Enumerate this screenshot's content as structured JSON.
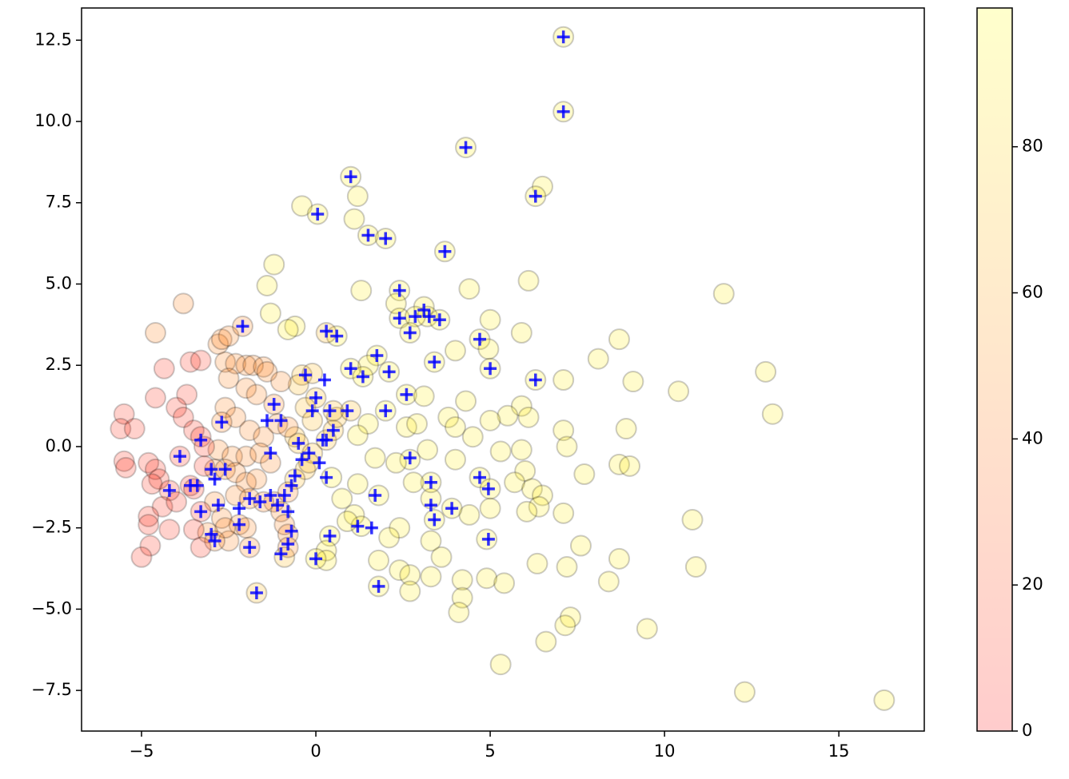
{
  "chart_data": {
    "type": "scatter",
    "xlim": [
      -6.72,
      17.45
    ],
    "ylim": [
      -8.75,
      13.49
    ],
    "xticks": [
      {
        "value": -5,
        "label": "−5"
      },
      0,
      5,
      10,
      15
    ],
    "yticks": [
      {
        "value": -7.5,
        "label": "−7.5"
      },
      {
        "value": -5,
        "label": "−5.0"
      },
      {
        "value": -2.5,
        "label": "−2.5"
      },
      {
        "value": 0,
        "label": "0.0"
      },
      2.5,
      {
        "value": 5,
        "label": "5.0"
      },
      7.5,
      {
        "value": 10,
        "label": "10.0"
      },
      12.5
    ],
    "colorbar": {
      "colormap": "autumn",
      "clim": [
        0,
        99
      ],
      "ticks": [
        0,
        20,
        40,
        60,
        80
      ],
      "alpha": 0.2
    },
    "series": [
      {
        "c": 92,
        "alpha": 0.2,
        "edgecolor": "#000000",
        "x": [
          7.1,
          7.1,
          4.3,
          1.0,
          1.2,
          6.5,
          6.3,
          -0.4,
          0.05,
          1.1,
          1.5,
          2.0,
          3.7,
          -1.2,
          -1.4,
          1.3,
          2.4,
          4.4,
          6.1,
          11.7,
          -1.3,
          2.3,
          3.1,
          3.2,
          2.4,
          2.85,
          3.55,
          5.0,
          5.9,
          0.6,
          -0.6,
          -0.8,
          8.7,
          8.1,
          12.9,
          9.1,
          10.4,
          13.1,
          7.1,
          6.3,
          4.7,
          4.95,
          5.0,
          4.0,
          3.4,
          2.7,
          1.75,
          1.5,
          2.1,
          1.0,
          1.35,
          2.6,
          3.1,
          4.3,
          5.9,
          6.1,
          5.5,
          5.0,
          4.5,
          3.8,
          4.0,
          2.0,
          1.5,
          2.6,
          2.9,
          1.2,
          8.9,
          7.1,
          7.2,
          5.9,
          5.3,
          4.0,
          3.2,
          2.7,
          1.7,
          2.3,
          6.0,
          7.7,
          8.7,
          9.0,
          4.7,
          5.0,
          5.7,
          6.2,
          6.5,
          6.4,
          6.05,
          7.1,
          5.0,
          4.4,
          3.9,
          3.3,
          3.3,
          2.8,
          3.4,
          3.3,
          2.4,
          2.1,
          1.8,
          2.4,
          2.7,
          2.7,
          1.8,
          3.3,
          3.6,
          4.2,
          4.9,
          4.2,
          4.1,
          5.4,
          6.35,
          7.2,
          7.6,
          8.4,
          8.7,
          10.8,
          10.9,
          7.3,
          7.15,
          6.6,
          9.5,
          5.3,
          12.3,
          16.3,
          4.9,
          1.2,
          1.8,
          1.1,
          1.3,
          0.9,
          0.4,
          0.3,
          0.3,
          0.0,
          0.75,
          0.45
        ],
        "y": [
          12.6,
          10.3,
          9.2,
          8.3,
          7.7,
          8.0,
          7.7,
          7.4,
          7.15,
          7.0,
          6.5,
          6.4,
          6.0,
          5.6,
          4.95,
          4.8,
          4.8,
          4.85,
          5.1,
          4.7,
          4.1,
          4.4,
          4.3,
          4.0,
          3.95,
          4.0,
          3.9,
          3.9,
          3.5,
          3.4,
          3.7,
          3.6,
          3.3,
          2.7,
          2.3,
          2.0,
          1.7,
          1.0,
          2.05,
          2.05,
          3.3,
          3.0,
          2.4,
          2.95,
          2.6,
          3.5,
          2.8,
          2.5,
          2.3,
          2.4,
          2.15,
          1.6,
          1.55,
          1.4,
          1.25,
          0.9,
          0.95,
          0.8,
          0.3,
          0.9,
          0.6,
          1.1,
          0.7,
          0.6,
          0.7,
          0.35,
          0.55,
          0.5,
          0.0,
          -0.1,
          -0.15,
          -0.4,
          -0.1,
          -0.4,
          -0.35,
          -0.5,
          -0.75,
          -0.85,
          -0.55,
          -0.6,
          -0.95,
          -1.3,
          -1.1,
          -1.3,
          -1.5,
          -1.85,
          -2.0,
          -2.05,
          -1.9,
          -2.1,
          -1.9,
          -1.6,
          -1.1,
          -1.1,
          -2.25,
          -2.9,
          -2.5,
          -2.8,
          -3.5,
          -3.8,
          -3.95,
          -4.45,
          -4.3,
          -4.0,
          -3.4,
          -4.1,
          -4.05,
          -4.65,
          -5.1,
          -4.2,
          -3.6,
          -3.7,
          -3.05,
          -4.15,
          -3.45,
          -2.25,
          -3.7,
          -5.25,
          -5.5,
          -6.0,
          -5.6,
          -6.7,
          -7.55,
          -7.8,
          -2.85,
          -1.15,
          -1.5,
          -2.1,
          -2.45,
          -2.3,
          -2.75,
          -3.2,
          -3.5,
          -3.45,
          -1.6,
          -0.95
        ]
      },
      {
        "c": 68,
        "alpha": 0.2,
        "edgecolor": "#000000",
        "x": [
          -0.6,
          -0.5,
          -0.3,
          -0.1,
          -0.2,
          0.0,
          -0.3,
          -0.1,
          0.3,
          0.5,
          0.6,
          1.0,
          0.5,
          -0.4,
          -0.1,
          0.3,
          -0.5,
          -0.6,
          -1.7,
          -0.9
        ],
        "y": [
          0.3,
          0.1,
          -0.7,
          -0.2,
          -0.5,
          1.5,
          1.2,
          0.8,
          0.2,
          0.5,
          0.9,
          1.1,
          1.1,
          2.2,
          2.25,
          3.5,
          1.9,
          -1.0,
          -4.5,
          -3.4
        ]
      },
      {
        "c": 45,
        "alpha": 0.2,
        "edgecolor": "#000000",
        "x": [
          -3.8,
          -4.6,
          -2.8,
          -2.7,
          -2.5,
          -2.1,
          -2.6,
          -2.3,
          -2.0,
          -1.8,
          -1.5,
          -1.4,
          -2.5,
          -2.0,
          -1.7,
          -1.2,
          -2.6,
          -2.3,
          -2.7,
          -1.9,
          -1.5,
          -1.1,
          -0.8,
          -2.8,
          -2.4,
          -2.0,
          -1.6,
          -1.3,
          -2.9,
          -2.6,
          -2.3,
          -2.0,
          -1.7,
          -2.9,
          -2.3,
          -1.9,
          -2.7,
          -2.2,
          -2.0,
          -1.2,
          -1.5,
          -0.8,
          -1.0,
          -0.9,
          -0.8,
          -0.8,
          -1.9,
          -2.5,
          -2.6,
          -1.0,
          -3.1,
          -2.9
        ],
        "y": [
          4.4,
          3.5,
          3.15,
          3.3,
          3.4,
          3.7,
          2.6,
          2.55,
          2.5,
          2.5,
          2.45,
          2.3,
          2.1,
          1.8,
          1.6,
          1.3,
          1.2,
          0.9,
          0.75,
          0.5,
          0.3,
          0.7,
          0.6,
          -0.1,
          -0.3,
          -0.3,
          -0.2,
          -0.5,
          -0.7,
          -0.7,
          -0.8,
          -1.1,
          -1.0,
          -1.7,
          -1.5,
          -1.6,
          -2.2,
          -2.4,
          -2.5,
          -1.7,
          -1.7,
          -1.4,
          -2.0,
          -2.4,
          -2.7,
          -3.1,
          -3.1,
          -2.9,
          -2.5,
          2.0,
          -2.65,
          -2.9
        ]
      },
      {
        "c": 10,
        "alpha": 0.2,
        "edgecolor": "#000000",
        "x": [
          -5.5,
          -5.6,
          -5.2,
          -5.5,
          -5.45,
          -4.8,
          -4.6,
          -4.5,
          -4.7,
          -4.2,
          -4.6,
          -4.35,
          -3.6,
          -3.3,
          -3.7,
          -4.0,
          -3.8,
          -3.5,
          -3.3,
          -3.2,
          -3.9,
          -3.6,
          -3.2,
          -3.3,
          -4.4,
          -4.8,
          -4.8,
          -4.2,
          -3.5,
          -3.3,
          -4.75,
          -5.0,
          -4.0,
          -3.5
        ],
        "y": [
          1.0,
          0.55,
          0.55,
          -0.45,
          -0.65,
          -0.5,
          -0.7,
          -1.0,
          -1.15,
          -1.35,
          1.5,
          2.4,
          2.6,
          2.65,
          1.6,
          1.2,
          0.9,
          0.5,
          0.3,
          0.0,
          -0.3,
          -1.2,
          -0.6,
          -2.0,
          -1.85,
          -2.15,
          -2.4,
          -2.55,
          -2.55,
          -3.1,
          -3.05,
          -3.4,
          -1.7,
          -1.3
        ]
      },
      {
        "marker": "+",
        "color": "#0000ff",
        "alpha": 0.8,
        "x": [
          7.1,
          7.1,
          4.3,
          1.0,
          0.05,
          1.5,
          2.0,
          3.7,
          6.3,
          2.4,
          3.1,
          2.4,
          2.85,
          3.25,
          3.55,
          2.7,
          4.7,
          5.0,
          6.3,
          3.4,
          1.75,
          1.0,
          1.35,
          2.1,
          2.0,
          2.6,
          -2.1,
          0.3,
          0.6,
          -0.3,
          0.25,
          -2.7,
          -1.2,
          -1.4,
          -1.0,
          -0.5,
          0.0,
          -0.1,
          0.4,
          0.5,
          0.2,
          -3.9,
          -3.3,
          -3.6,
          -3.0,
          -2.6,
          -2.9,
          -3.4,
          -4.2,
          -3.3,
          -3.0,
          -2.9,
          -2.8,
          -2.2,
          -2.2,
          -1.9,
          -1.3,
          -1.6,
          -1.1,
          -0.9,
          -0.7,
          -0.6,
          -0.4,
          0.1,
          -0.2,
          -1.3,
          -0.8,
          -0.7,
          -0.8,
          -1.0,
          -1.9,
          -1.7,
          0.0,
          0.4,
          0.3,
          1.7,
          1.2,
          1.6,
          2.7,
          3.3,
          3.3,
          3.4,
          3.9,
          4.7,
          4.95,
          4.95,
          1.8,
          0.9,
          0.3
        ],
        "y": [
          12.6,
          10.3,
          9.2,
          8.3,
          7.15,
          6.5,
          6.4,
          6.0,
          7.7,
          4.8,
          4.2,
          3.95,
          4.0,
          4.0,
          3.9,
          3.5,
          3.3,
          2.4,
          2.05,
          2.6,
          2.8,
          2.4,
          2.15,
          2.3,
          1.1,
          1.6,
          3.7,
          3.55,
          3.4,
          2.2,
          2.05,
          0.75,
          1.3,
          0.8,
          0.8,
          0.1,
          1.5,
          1.1,
          1.1,
          0.5,
          0.2,
          -0.3,
          0.2,
          -1.2,
          -0.7,
          -0.7,
          -1.0,
          -1.2,
          -1.35,
          -2.0,
          -2.7,
          -2.9,
          -1.8,
          -2.4,
          -1.9,
          -1.6,
          -1.5,
          -1.7,
          -1.8,
          -1.5,
          -1.2,
          -0.9,
          -0.4,
          -0.5,
          -0.2,
          -0.2,
          -2.0,
          -2.6,
          -3.0,
          -3.3,
          -3.1,
          -4.5,
          -3.45,
          -2.75,
          -0.95,
          -1.5,
          -2.45,
          -2.5,
          -0.35,
          -1.1,
          -1.8,
          -2.25,
          -1.9,
          -0.95,
          -1.3,
          -2.85,
          -4.3,
          1.1,
          0.2
        ]
      }
    ]
  }
}
